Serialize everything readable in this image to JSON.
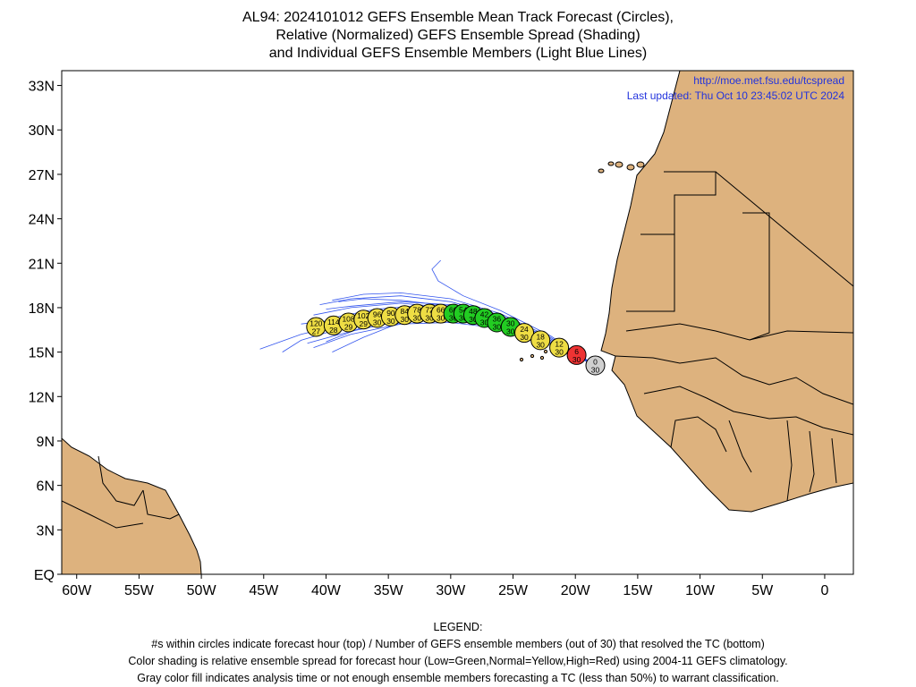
{
  "title": {
    "line1": "AL94: 2024101012 GEFS Ensemble Mean Track Forecast (Circles),",
    "line2": "Relative (Normalized) GEFS Ensemble Spread (Shading)",
    "line3": "and Individual GEFS Ensemble Members (Light Blue Lines)"
  },
  "info": {
    "url": "http://moe.met.fsu.edu/tcspread",
    "updated": "Last updated: Thu Oct 10 23:45:02 UTC 2024"
  },
  "axes": {
    "lat_labels": [
      "33N",
      "30N",
      "27N",
      "24N",
      "21N",
      "18N",
      "15N",
      "12N",
      "9N",
      "6N",
      "3N",
      "EQ"
    ],
    "lon_labels": [
      "60W",
      "55W",
      "50W",
      "45W",
      "40W",
      "35W",
      "30W",
      "25W",
      "20W",
      "15W",
      "10W",
      "5W",
      "0"
    ]
  },
  "colors": {
    "land": "#ddb27e",
    "track": "#3355ee",
    "green": "#22cc22",
    "yellow": "#eedd44",
    "red": "#ee3333",
    "gray": "#d0d0d0"
  },
  "chart_data": {
    "type": "map-track",
    "x_axis": "longitude (deg, negative = W)",
    "y_axis": "latitude (deg N)",
    "xlim": [
      -61.2,
      2.3
    ],
    "ylim": [
      0,
      34
    ],
    "circles": [
      {
        "lon": -18.4,
        "lat": 14.1,
        "hour": "0",
        "members": "30",
        "class": "gray"
      },
      {
        "lon": -19.9,
        "lat": 14.8,
        "hour": "6",
        "members": "30",
        "class": "red"
      },
      {
        "lon": -21.3,
        "lat": 15.3,
        "hour": "12",
        "members": "30",
        "class": "yellow"
      },
      {
        "lon": -22.8,
        "lat": 15.8,
        "hour": "18",
        "members": "30",
        "class": "yellow"
      },
      {
        "lon": -24.1,
        "lat": 16.3,
        "hour": "24",
        "members": "30",
        "class": "yellow"
      },
      {
        "lon": -25.2,
        "lat": 16.7,
        "hour": "30",
        "members": "30",
        "class": "green"
      },
      {
        "lon": -26.3,
        "lat": 17.0,
        "hour": "36",
        "members": "30",
        "class": "green"
      },
      {
        "lon": -27.3,
        "lat": 17.3,
        "hour": "42",
        "members": "30",
        "class": "green"
      },
      {
        "lon": -28.2,
        "lat": 17.5,
        "hour": "48",
        "members": "30",
        "class": "green"
      },
      {
        "lon": -29.0,
        "lat": 17.6,
        "hour": "54",
        "members": "30",
        "class": "green"
      },
      {
        "lon": -29.8,
        "lat": 17.6,
        "hour": "60",
        "members": "30",
        "class": "green"
      },
      {
        "lon": -30.8,
        "lat": 17.6,
        "hour": "66",
        "members": "30",
        "class": "yellow"
      },
      {
        "lon": -31.7,
        "lat": 17.6,
        "hour": "72",
        "members": "30",
        "class": "yellow"
      },
      {
        "lon": -32.7,
        "lat": 17.6,
        "hour": "78",
        "members": "30",
        "class": "yellow"
      },
      {
        "lon": -33.7,
        "lat": 17.5,
        "hour": "84",
        "members": "30",
        "class": "yellow"
      },
      {
        "lon": -34.8,
        "lat": 17.4,
        "hour": "90",
        "members": "30",
        "class": "yellow"
      },
      {
        "lon": -35.9,
        "lat": 17.3,
        "hour": "96",
        "members": "30",
        "class": "yellow"
      },
      {
        "lon": -37.0,
        "lat": 17.2,
        "hour": "102",
        "members": "29",
        "class": "yellow"
      },
      {
        "lon": -38.2,
        "lat": 17.0,
        "hour": "108",
        "members": "29",
        "class": "yellow"
      },
      {
        "lon": -39.4,
        "lat": 16.8,
        "hour": "114",
        "members": "28",
        "class": "yellow"
      },
      {
        "lon": -40.8,
        "lat": 16.7,
        "hour": "120",
        "members": "27",
        "class": "yellow"
      }
    ],
    "members": [
      [
        [
          -18.4,
          14.1
        ],
        [
          -22,
          15.6
        ],
        [
          -26,
          16.8
        ],
        [
          -30,
          17.4
        ],
        [
          -34,
          17.5
        ],
        [
          -38,
          17.0
        ],
        [
          -42,
          16.2
        ],
        [
          -45.3,
          15.2
        ]
      ],
      [
        [
          -18.4,
          14.1
        ],
        [
          -22,
          15.8
        ],
        [
          -26,
          17.2
        ],
        [
          -30,
          18.0
        ],
        [
          -34,
          18.3
        ],
        [
          -38,
          18.0
        ],
        [
          -41,
          17.5
        ]
      ],
      [
        [
          -18.4,
          14.1
        ],
        [
          -22,
          15.7
        ],
        [
          -26,
          17.0
        ],
        [
          -30,
          17.7
        ],
        [
          -34,
          17.6
        ],
        [
          -38,
          16.8
        ],
        [
          -42,
          15.8
        ],
        [
          -43.5,
          15.0
        ]
      ],
      [
        [
          -18.4,
          14.1
        ],
        [
          -22,
          16.0
        ],
        [
          -26,
          17.6
        ],
        [
          -30,
          18.6
        ],
        [
          -34,
          19.0
        ],
        [
          -37,
          18.9
        ],
        [
          -39.5,
          18.5
        ]
      ],
      [
        [
          -18.4,
          14.1
        ],
        [
          -22,
          15.5
        ],
        [
          -26,
          16.6
        ],
        [
          -30,
          17.0
        ],
        [
          -34,
          16.9
        ],
        [
          -38,
          16.2
        ],
        [
          -41,
          15.3
        ]
      ],
      [
        [
          -18.4,
          14.1
        ],
        [
          -22,
          15.9
        ],
        [
          -26,
          17.4
        ],
        [
          -30,
          18.2
        ],
        [
          -34,
          18.4
        ],
        [
          -38,
          18.1
        ],
        [
          -40,
          17.9
        ]
      ],
      [
        [
          -18.4,
          14.1
        ],
        [
          -22,
          15.7
        ],
        [
          -26,
          17.1
        ],
        [
          -30,
          17.9
        ],
        [
          -33,
          18.1
        ],
        [
          -36,
          17.9
        ],
        [
          -39,
          17.4
        ]
      ],
      [
        [
          -18.4,
          14.1
        ],
        [
          -22,
          15.6
        ],
        [
          -26,
          16.9
        ],
        [
          -30,
          17.5
        ],
        [
          -34,
          17.4
        ],
        [
          -37,
          16.7
        ],
        [
          -40,
          15.7
        ]
      ],
      [
        [
          -18.4,
          14.1
        ],
        [
          -22,
          16.1
        ],
        [
          -26,
          17.8
        ],
        [
          -29,
          18.8
        ],
        [
          -31,
          19.8
        ],
        [
          -31.5,
          20.6
        ],
        [
          -30.8,
          21.2
        ]
      ],
      [
        [
          -18.4,
          14.1
        ],
        [
          -22,
          15.8
        ],
        [
          -26,
          17.3
        ],
        [
          -30,
          18.1
        ],
        [
          -34,
          18.5
        ],
        [
          -37,
          18.6
        ],
        [
          -39,
          18.4
        ]
      ],
      [
        [
          -18.4,
          14.1
        ],
        [
          -22,
          15.5
        ],
        [
          -26,
          16.7
        ],
        [
          -30,
          17.2
        ],
        [
          -34,
          17.1
        ],
        [
          -38,
          16.4
        ],
        [
          -41.5,
          15.6
        ]
      ],
      [
        [
          -18.4,
          14.1
        ],
        [
          -22,
          15.9
        ],
        [
          -26,
          17.5
        ],
        [
          -30,
          18.4
        ],
        [
          -34,
          18.8
        ],
        [
          -38,
          18.6
        ],
        [
          -40.5,
          18.2
        ]
      ],
      [
        [
          -18.4,
          14.1
        ],
        [
          -22,
          15.6
        ],
        [
          -26,
          16.8
        ],
        [
          -30,
          17.5
        ],
        [
          -34,
          17.6
        ],
        [
          -38,
          17.3
        ],
        [
          -42,
          16.9
        ]
      ],
      [
        [
          -18.4,
          14.1
        ],
        [
          -22,
          15.7
        ],
        [
          -26,
          16.9
        ],
        [
          -30,
          17.3
        ],
        [
          -34,
          17.0
        ],
        [
          -37,
          16.0
        ],
        [
          -39.5,
          15.0
        ]
      ]
    ]
  }
}
